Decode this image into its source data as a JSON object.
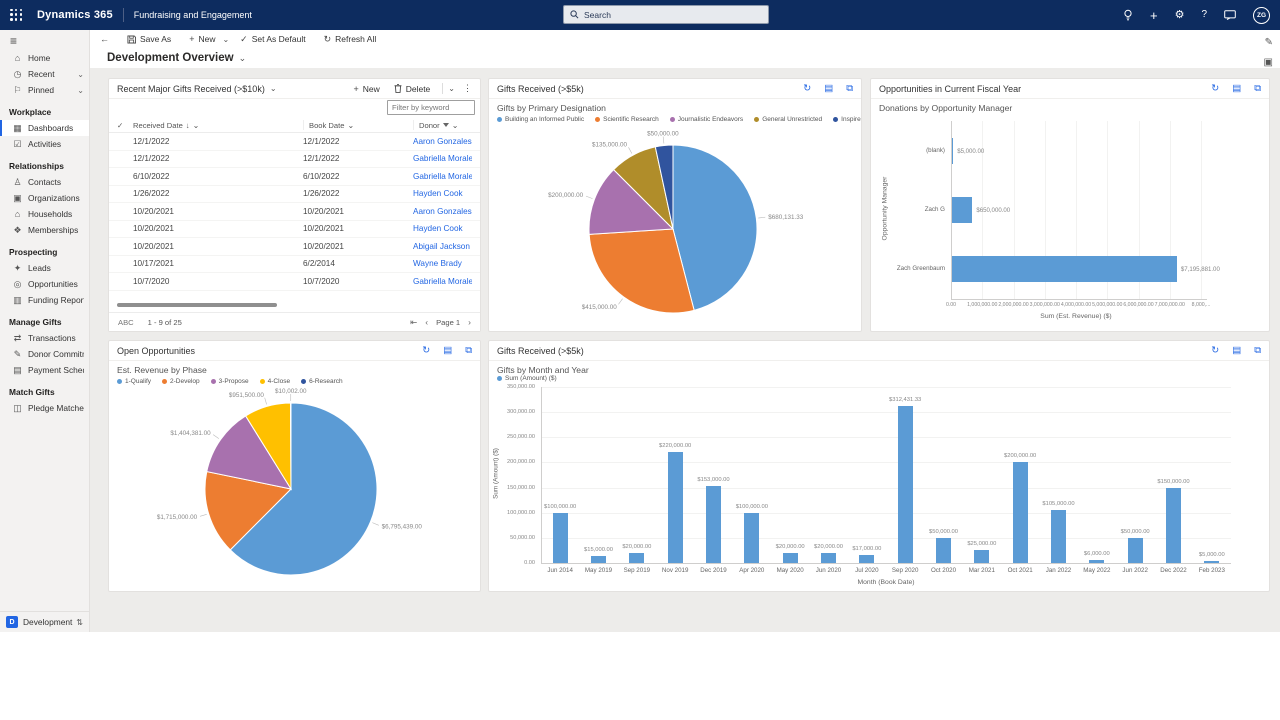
{
  "topbar": {
    "brand": "Dynamics 365",
    "app_name": "Fundraising and Engagement",
    "search_placeholder": "Search",
    "avatar_initials": "ZG"
  },
  "command_bar": {
    "save_as": "Save As",
    "new": "New",
    "set_as_default": "Set As Default",
    "refresh_all": "Refresh All",
    "page_title": "Development Overview"
  },
  "sidebar": {
    "groups": [
      {
        "header": "",
        "items": [
          {
            "label": "Home",
            "icon": "home-icon"
          },
          {
            "label": "Recent",
            "icon": "recent-icon",
            "chevron": true
          },
          {
            "label": "Pinned",
            "icon": "pinned-icon",
            "chevron": true
          }
        ]
      },
      {
        "header": "Workplace",
        "items": [
          {
            "label": "Dashboards",
            "icon": "dashboards-icon",
            "selected": true
          },
          {
            "label": "Activities",
            "icon": "activities-icon"
          }
        ]
      },
      {
        "header": "Relationships",
        "items": [
          {
            "label": "Contacts",
            "icon": "contacts-icon"
          },
          {
            "label": "Organizations",
            "icon": "organizations-icon"
          },
          {
            "label": "Households",
            "icon": "households-icon"
          },
          {
            "label": "Memberships",
            "icon": "memberships-icon"
          }
        ]
      },
      {
        "header": "Prospecting",
        "items": [
          {
            "label": "Leads",
            "icon": "leads-icon"
          },
          {
            "label": "Opportunities",
            "icon": "opportunities-icon"
          },
          {
            "label": "Funding Reports",
            "icon": "funding-reports-icon"
          }
        ]
      },
      {
        "header": "Manage Gifts",
        "items": [
          {
            "label": "Transactions",
            "icon": "transactions-icon"
          },
          {
            "label": "Donor Commitments",
            "icon": "donor-commitments-icon"
          },
          {
            "label": "Payment Schedules",
            "icon": "payment-schedules-icon"
          }
        ]
      },
      {
        "header": "Match Gifts",
        "items": [
          {
            "label": "Pledge Matches",
            "icon": "pledge-matches-icon"
          }
        ]
      }
    ],
    "environment": {
      "badge": "D",
      "label": "Development"
    }
  },
  "table_panel": {
    "title": "Recent Major Gifts Received (>$10k)",
    "toolbar": {
      "new": "New",
      "delete": "Delete"
    },
    "filter_placeholder": "Filter by keyword",
    "columns": [
      {
        "label": "Received Date",
        "sorted": "desc"
      },
      {
        "label": "Book Date"
      },
      {
        "label": "Donor",
        "filtered": true
      }
    ],
    "rows": [
      {
        "received_date": "12/1/2022",
        "book_date": "12/1/2022",
        "donor": "Aaron Gonzales"
      },
      {
        "received_date": "12/1/2022",
        "book_date": "12/1/2022",
        "donor": "Gabriella Morales"
      },
      {
        "received_date": "6/10/2022",
        "book_date": "6/10/2022",
        "donor": "Gabriella Morales"
      },
      {
        "received_date": "1/26/2022",
        "book_date": "1/26/2022",
        "donor": "Hayden Cook"
      },
      {
        "received_date": "10/20/2021",
        "book_date": "10/20/2021",
        "donor": "Aaron Gonzales"
      },
      {
        "received_date": "10/20/2021",
        "book_date": "10/20/2021",
        "donor": "Hayden Cook"
      },
      {
        "received_date": "10/20/2021",
        "book_date": "10/20/2021",
        "donor": "Abigail Jackson"
      },
      {
        "received_date": "10/17/2021",
        "book_date": "6/2/2014",
        "donor": "Wayne Brady"
      },
      {
        "received_date": "10/7/2020",
        "book_date": "10/7/2020",
        "donor": "Gabriella Morales"
      }
    ],
    "footer": {
      "jump": "ABC",
      "range": "1 - 9 of 25",
      "page": "Page 1"
    }
  },
  "chart_data": [
    {
      "id": "gifts_by_designation",
      "panel_title": "Gifts Received (>$5k)",
      "type": "pie",
      "title": "Gifts by Primary Designation",
      "legend_position": "top",
      "slices": [
        {
          "label": "Building an Informed Public",
          "value": 680131.33,
          "display": "$680,131.33",
          "color": "#5b9bd5"
        },
        {
          "label": "Scientific Research",
          "value": 415000,
          "display": "$415,000.00",
          "color": "#ed7d31"
        },
        {
          "label": "Journalistic Endeavors",
          "value": 200000,
          "display": "$200,000.00",
          "color": "#a871ae"
        },
        {
          "label": "General Unrestricted",
          "value": 135000,
          "display": "$135,000.00",
          "color": "#b08d2a"
        },
        {
          "label": "Inspire Leaders",
          "value": 50000,
          "display": "$50,000.00",
          "color": "#30549e"
        }
      ]
    },
    {
      "id": "donations_by_manager",
      "panel_title": "Opportunities in Current Fiscal Year",
      "type": "bar-horizontal",
      "title": "Donations by Opportunity Manager",
      "categories": [
        "(blank)",
        "Zach G",
        "Zach Greenbaum"
      ],
      "values": [
        5000,
        650000,
        7195881
      ],
      "labels": [
        "$5,000.00",
        "$650,000.00",
        "$7,195,881.00"
      ],
      "xlabel": "Sum (Est. Revenue) ($)",
      "ylabel": "Opportunity Manager",
      "xlim": [
        0,
        8000000
      ],
      "xticks": [
        "0.00",
        "1,000,000.00",
        "2,000,000.00",
        "3,000,000.00",
        "4,000,000.00",
        "5,000,000.00",
        "6,000,000.00",
        "7,000,000.00",
        "8,000,..."
      ],
      "bar_color": "#5b9bd5",
      "grid": true
    },
    {
      "id": "est_revenue_by_phase",
      "panel_title": "Open Opportunities",
      "type": "pie",
      "title": "Est. Revenue by Phase",
      "legend_position": "top",
      "slices": [
        {
          "label": "1-Qualify",
          "value": 6795439,
          "display": "$6,795,439.00",
          "color": "#5b9bd5"
        },
        {
          "label": "2-Develop",
          "value": 1715000,
          "display": "$1,715,000.00",
          "color": "#ed7d31"
        },
        {
          "label": "3-Propose",
          "value": 1404381,
          "display": "$1,404,381.00",
          "color": "#a871ae"
        },
        {
          "label": "4-Close",
          "value": 951500,
          "display": "$951,500.00",
          "color": "#ffc000"
        },
        {
          "label": "6-Research",
          "value": 10002,
          "display": "$10,002.00",
          "color": "#30549e"
        }
      ]
    },
    {
      "id": "gifts_by_month",
      "panel_title": "Gifts Received (>$5k)",
      "type": "bar",
      "title": "Gifts by Month and Year",
      "legend": [
        "Sum (Amount) ($)"
      ],
      "categories": [
        "Jun 2014",
        "May 2019",
        "Sep 2019",
        "Nov 2019",
        "Dec 2019",
        "Apr 2020",
        "May 2020",
        "Jun 2020",
        "Jul 2020",
        "Sep 2020",
        "Oct 2020",
        "Mar 2021",
        "Oct 2021",
        "Jan 2022",
        "May 2022",
        "Jun 2022",
        "Dec 2022",
        "Feb 2023"
      ],
      "values": [
        100000,
        15000,
        20000,
        220000,
        153000,
        100000,
        20000,
        20000,
        17000,
        312431.33,
        50000,
        25000,
        200000,
        105000,
        6000,
        50000,
        150000,
        5000
      ],
      "labels": [
        "$100,000.00",
        "$15,000.00",
        "$20,000.00",
        "$220,000.00",
        "$153,000.00",
        "$100,000.00",
        "$20,000.00",
        "$20,000.00",
        "$17,000.00",
        "$312,431.33",
        "$50,000.00",
        "$25,000.00",
        "$200,000.00",
        "$105,000.00",
        "$6,000.00",
        "$50,000.00",
        "$150,000.00",
        "$5,000.00"
      ],
      "xlabel": "Month (Book Date)",
      "ylabel": "Sum (Amount) ($)",
      "ylim": [
        0,
        350000
      ],
      "yticks": [
        "0.00",
        "50,000.00",
        "100,000.00",
        "150,000.00",
        "200,000.00",
        "250,000.00",
        "300,000.00",
        "350,000.00"
      ],
      "bar_color": "#5b9bd5",
      "grid": true
    }
  ],
  "icons": {
    "home-icon": "⌂",
    "recent-icon": "◷",
    "pinned-icon": "⚐",
    "dashboards-icon": "▦",
    "activities-icon": "☑",
    "contacts-icon": "♙",
    "organizations-icon": "▣",
    "households-icon": "⌂",
    "memberships-icon": "❖",
    "leads-icon": "✦",
    "opportunities-icon": "◎",
    "funding-reports-icon": "▥",
    "transactions-icon": "⇄",
    "donor-commitments-icon": "✎",
    "payment-schedules-icon": "▤",
    "pledge-matches-icon": "◫",
    "back-arrow-icon": "←",
    "new-plus-icon": "+",
    "chevron-down-icon": "⌄",
    "checkmark-icon": "✓",
    "refresh-icon": "↻",
    "more-vertical-icon": "⋮",
    "sort-desc-icon": "↓",
    "first-page-icon": "⇤",
    "prev-page-icon": "‹",
    "next-page-icon": "›",
    "view-records-icon": "▤",
    "expand-icon": "⧉",
    "search-icon": "⌕",
    "settings-gear-icon": "⚙",
    "help-icon": "?",
    "quick-create-icon": "+",
    "environment-switch-icon": "⇅",
    "hamburger-icon": "≡",
    "edit-icon": "✎",
    "side-pane-icon": "▣"
  }
}
